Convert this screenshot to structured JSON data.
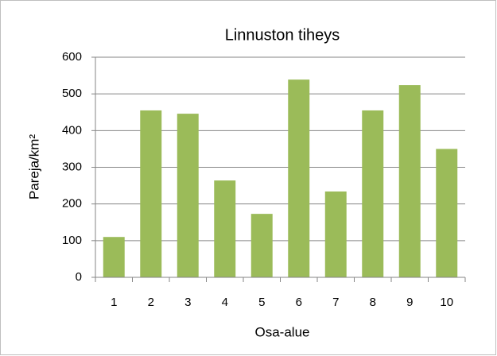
{
  "chart_data": {
    "type": "bar",
    "title": "Linnuston tiheys",
    "x_label": "Osa-alue",
    "y_label": "Pareja/km²",
    "categories": [
      "1",
      "2",
      "3",
      "4",
      "5",
      "6",
      "7",
      "8",
      "9",
      "10"
    ],
    "values": [
      110,
      455,
      446,
      264,
      173,
      539,
      234,
      455,
      524,
      350
    ],
    "color": "#9bbb59",
    "ylim": [
      0,
      600
    ],
    "yticks": [
      0,
      100,
      200,
      300,
      400,
      500,
      600
    ],
    "grid": true
  }
}
